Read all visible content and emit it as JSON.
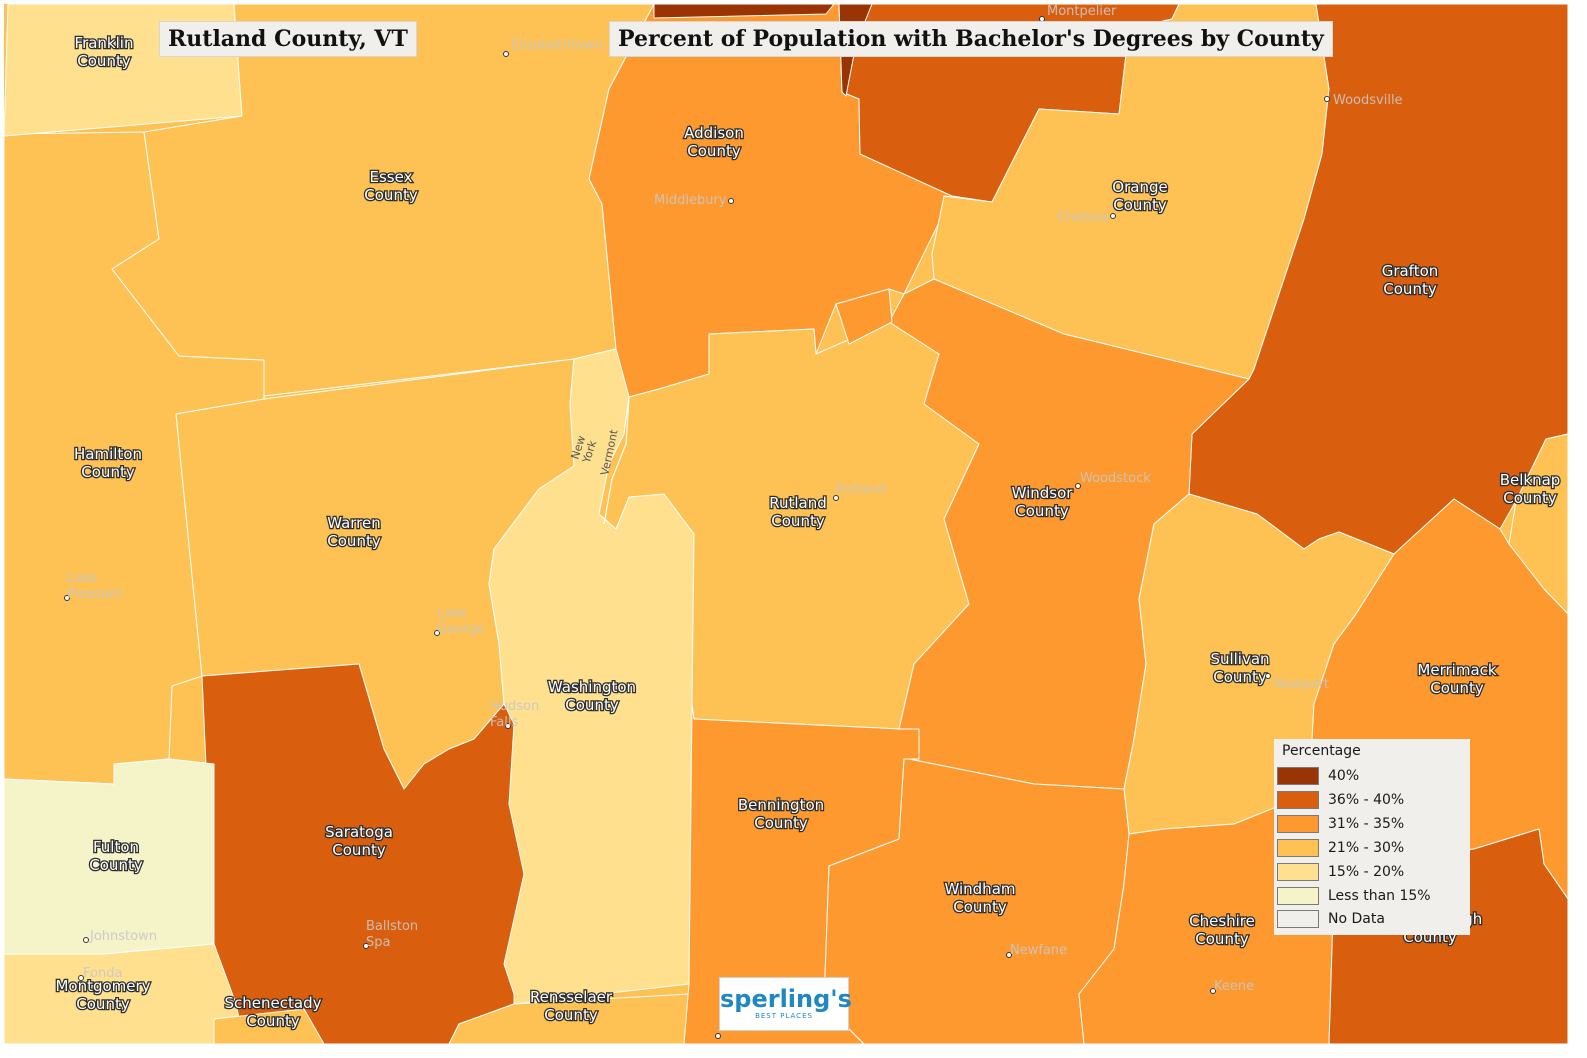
{
  "title_left": "Rutland County, VT",
  "title_right": "Percent of Population with Bachelor's Degrees by County",
  "legend": {
    "title": "Percentage",
    "items": [
      {
        "label": "40%",
        "color": "#993404"
      },
      {
        "label": "36% - 40%",
        "color": "#D95F0E"
      },
      {
        "label": "31% - 35%",
        "color": "#FD992E"
      },
      {
        "label": "21% - 30%",
        "color": "#FDC253"
      },
      {
        "label": "15% - 20%",
        "color": "#FEE08F"
      },
      {
        "label": "Less than 15%",
        "color": "#F5F3C8"
      },
      {
        "label": "No Data",
        "color": "#F0EFEB"
      }
    ]
  },
  "counties": [
    {
      "name": "Franklin County",
      "line1": "Franklin",
      "line2": "County",
      "category": "15% - 20%"
    },
    {
      "name": "Essex County",
      "line1": "Essex",
      "line2": "County",
      "category": "21% - 30%"
    },
    {
      "name": "Addison County",
      "line1": "Addison",
      "line2": "County",
      "category": "31% - 35%"
    },
    {
      "name": "Washington County (VT)",
      "line1": "",
      "line2": "",
      "category": "36% - 40%"
    },
    {
      "name": "Orange County",
      "line1": "Orange",
      "line2": "County",
      "category": "21% - 30%"
    },
    {
      "name": "Grafton County",
      "line1": "Grafton",
      "line2": "County",
      "category": "36% - 40%"
    },
    {
      "name": "Hamilton County",
      "line1": "Hamilton",
      "line2": "County",
      "category": "21% - 30%"
    },
    {
      "name": "Warren County",
      "line1": "Warren",
      "line2": "County",
      "category": "21% - 30%"
    },
    {
      "name": "Rutland County",
      "line1": "Rutland",
      "line2": "County",
      "category": "21% - 30%"
    },
    {
      "name": "Windsor County",
      "line1": "Windsor",
      "line2": "County",
      "category": "31% - 35%"
    },
    {
      "name": "Belknap County",
      "line1": "Belknap",
      "line2": "County",
      "category": "21% - 30%"
    },
    {
      "name": "Washington County",
      "line1": "Washington",
      "line2": "County",
      "category": "15% - 20%"
    },
    {
      "name": "Sullivan County",
      "line1": "Sullivan",
      "line2": "County",
      "category": "21% - 30%"
    },
    {
      "name": "Merrimack County",
      "line1": "Merrimack",
      "line2": "County",
      "category": "31% - 35%"
    },
    {
      "name": "Saratoga County",
      "line1": "Saratoga",
      "line2": "County",
      "category": "36% - 40%"
    },
    {
      "name": "Fulton County",
      "line1": "Fulton",
      "line2": "County",
      "category": "Less than 15%"
    },
    {
      "name": "Bennington County",
      "line1": "Bennington",
      "line2": "County",
      "category": "31% - 35%"
    },
    {
      "name": "Windham County",
      "line1": "Windham",
      "line2": "County",
      "category": "31% - 35%"
    },
    {
      "name": "Cheshire County",
      "line1": "Cheshire",
      "line2": "County",
      "category": "31% - 35%"
    },
    {
      "name": "Hillsborough County",
      "line1": "ugh",
      "line2": "County",
      "category": "36% - 40%"
    },
    {
      "name": "Montgomery County",
      "line1": "Montgomery",
      "line2": "County",
      "category": "15% - 20%"
    },
    {
      "name": "Schenectady County",
      "line1": "Schenectady",
      "line2": "County",
      "category": "21% - 30%"
    },
    {
      "name": "Rensselaer County",
      "line1": "Rensselaer",
      "line2": "County",
      "category": "21% - 30%"
    }
  ],
  "cities": [
    {
      "line1": "Montpelier",
      "line2": ""
    },
    {
      "line1": "Elizabethtown",
      "line2": ""
    },
    {
      "line1": "Woodsville",
      "line2": ""
    },
    {
      "line1": "Middlebury",
      "line2": ""
    },
    {
      "line1": "Chelsea",
      "line2": ""
    },
    {
      "line1": "Rutland",
      "line2": ""
    },
    {
      "line1": "Woodstock",
      "line2": ""
    },
    {
      "line1": "Lake",
      "line2": "Pleasant"
    },
    {
      "line1": "Lake",
      "line2": "George"
    },
    {
      "line1": "Hudson",
      "line2": "Falls"
    },
    {
      "line1": "Newport",
      "line2": ""
    },
    {
      "line1": "Ballston",
      "line2": "Spa"
    },
    {
      "line1": "Johnstown",
      "line2": ""
    },
    {
      "line1": "Newfane",
      "line2": ""
    },
    {
      "line1": "Keene",
      "line2": ""
    },
    {
      "line1": "Fonda",
      "line2": ""
    }
  ],
  "state_labels": {
    "left": [
      "New",
      "York"
    ],
    "right": "Vermont"
  },
  "logo": {
    "main": "sperling's",
    "sub": "BEST PLACES"
  }
}
